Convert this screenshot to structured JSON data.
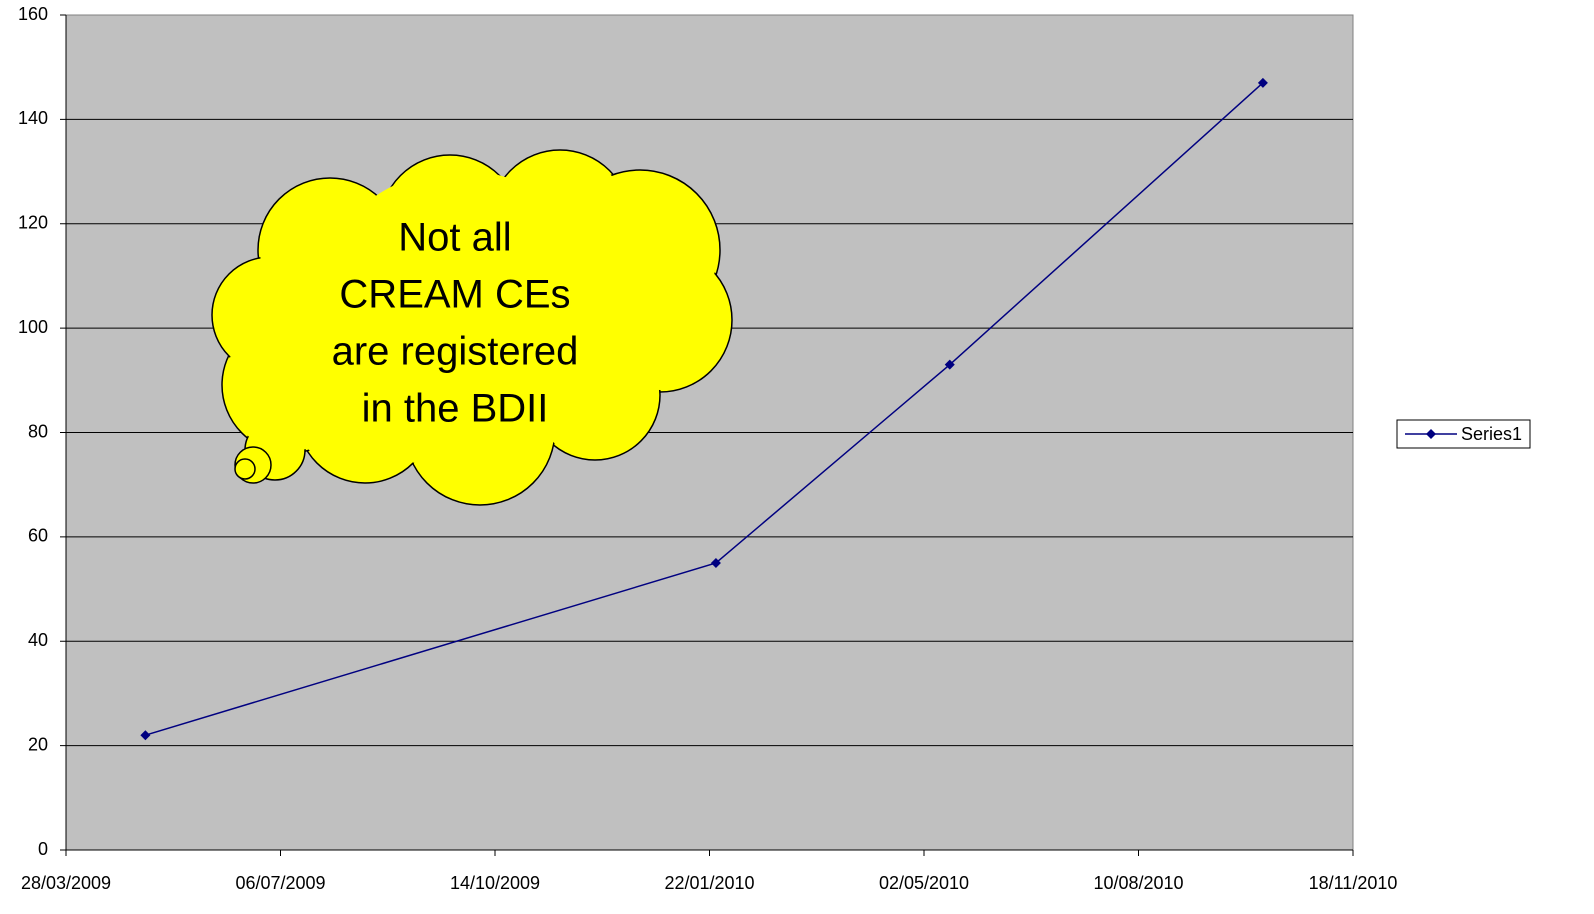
{
  "chart_data": {
    "type": "line",
    "x": [
      "2009-05-04",
      "2010-01-25",
      "2010-05-14",
      "2010-10-07"
    ],
    "series": [
      {
        "name": "Series1",
        "color": "#000080",
        "values": [
          22,
          55,
          93,
          147
        ]
      }
    ],
    "xlim": [
      "2009-03-28",
      "2010-11-18"
    ],
    "xticks": [
      {
        "value": "2009-03-28",
        "label": "28/03/2009"
      },
      {
        "value": "2009-07-06",
        "label": "06/07/2009"
      },
      {
        "value": "2009-10-14",
        "label": "14/10/2009"
      },
      {
        "value": "2010-01-22",
        "label": "22/01/2010"
      },
      {
        "value": "2010-05-02",
        "label": "02/05/2010"
      },
      {
        "value": "2010-08-10",
        "label": "10/08/2010"
      },
      {
        "value": "2010-11-18",
        "label": "18/11/2010"
      }
    ],
    "ylim": [
      0,
      160
    ],
    "yticks": [
      0,
      20,
      40,
      60,
      80,
      100,
      120,
      140,
      160
    ],
    "grid": true,
    "legend": "right",
    "plot_background": "#c0c0c0",
    "annotation": [
      "Not all",
      "CREAM CEs",
      "are registered",
      "in the BDII"
    ]
  }
}
